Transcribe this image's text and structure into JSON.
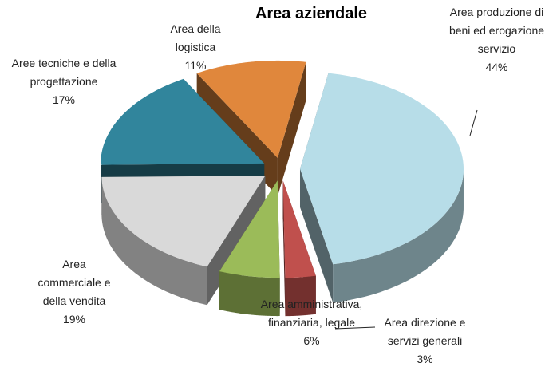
{
  "chart_data": {
    "type": "pie",
    "title": "Area aziendale",
    "categories": [
      "Area produzione di beni ed erogazione servizio",
      "Area direzione e servizi generali",
      "Area amministrativa, finanziaria, legale",
      "Area commerciale e della vendita",
      "Aree tecniche e della progettazione",
      "Area della logistica"
    ],
    "values": [
      44,
      3,
      6,
      19,
      17,
      11
    ],
    "value_labels": [
      "44%",
      "3%",
      "6%",
      "19%",
      "17%",
      "11%"
    ],
    "colors": [
      "#b7dde8",
      "#c0504d",
      "#9bbb59",
      "#d9d9d9",
      "#31859c",
      "#e0873c"
    ]
  }
}
